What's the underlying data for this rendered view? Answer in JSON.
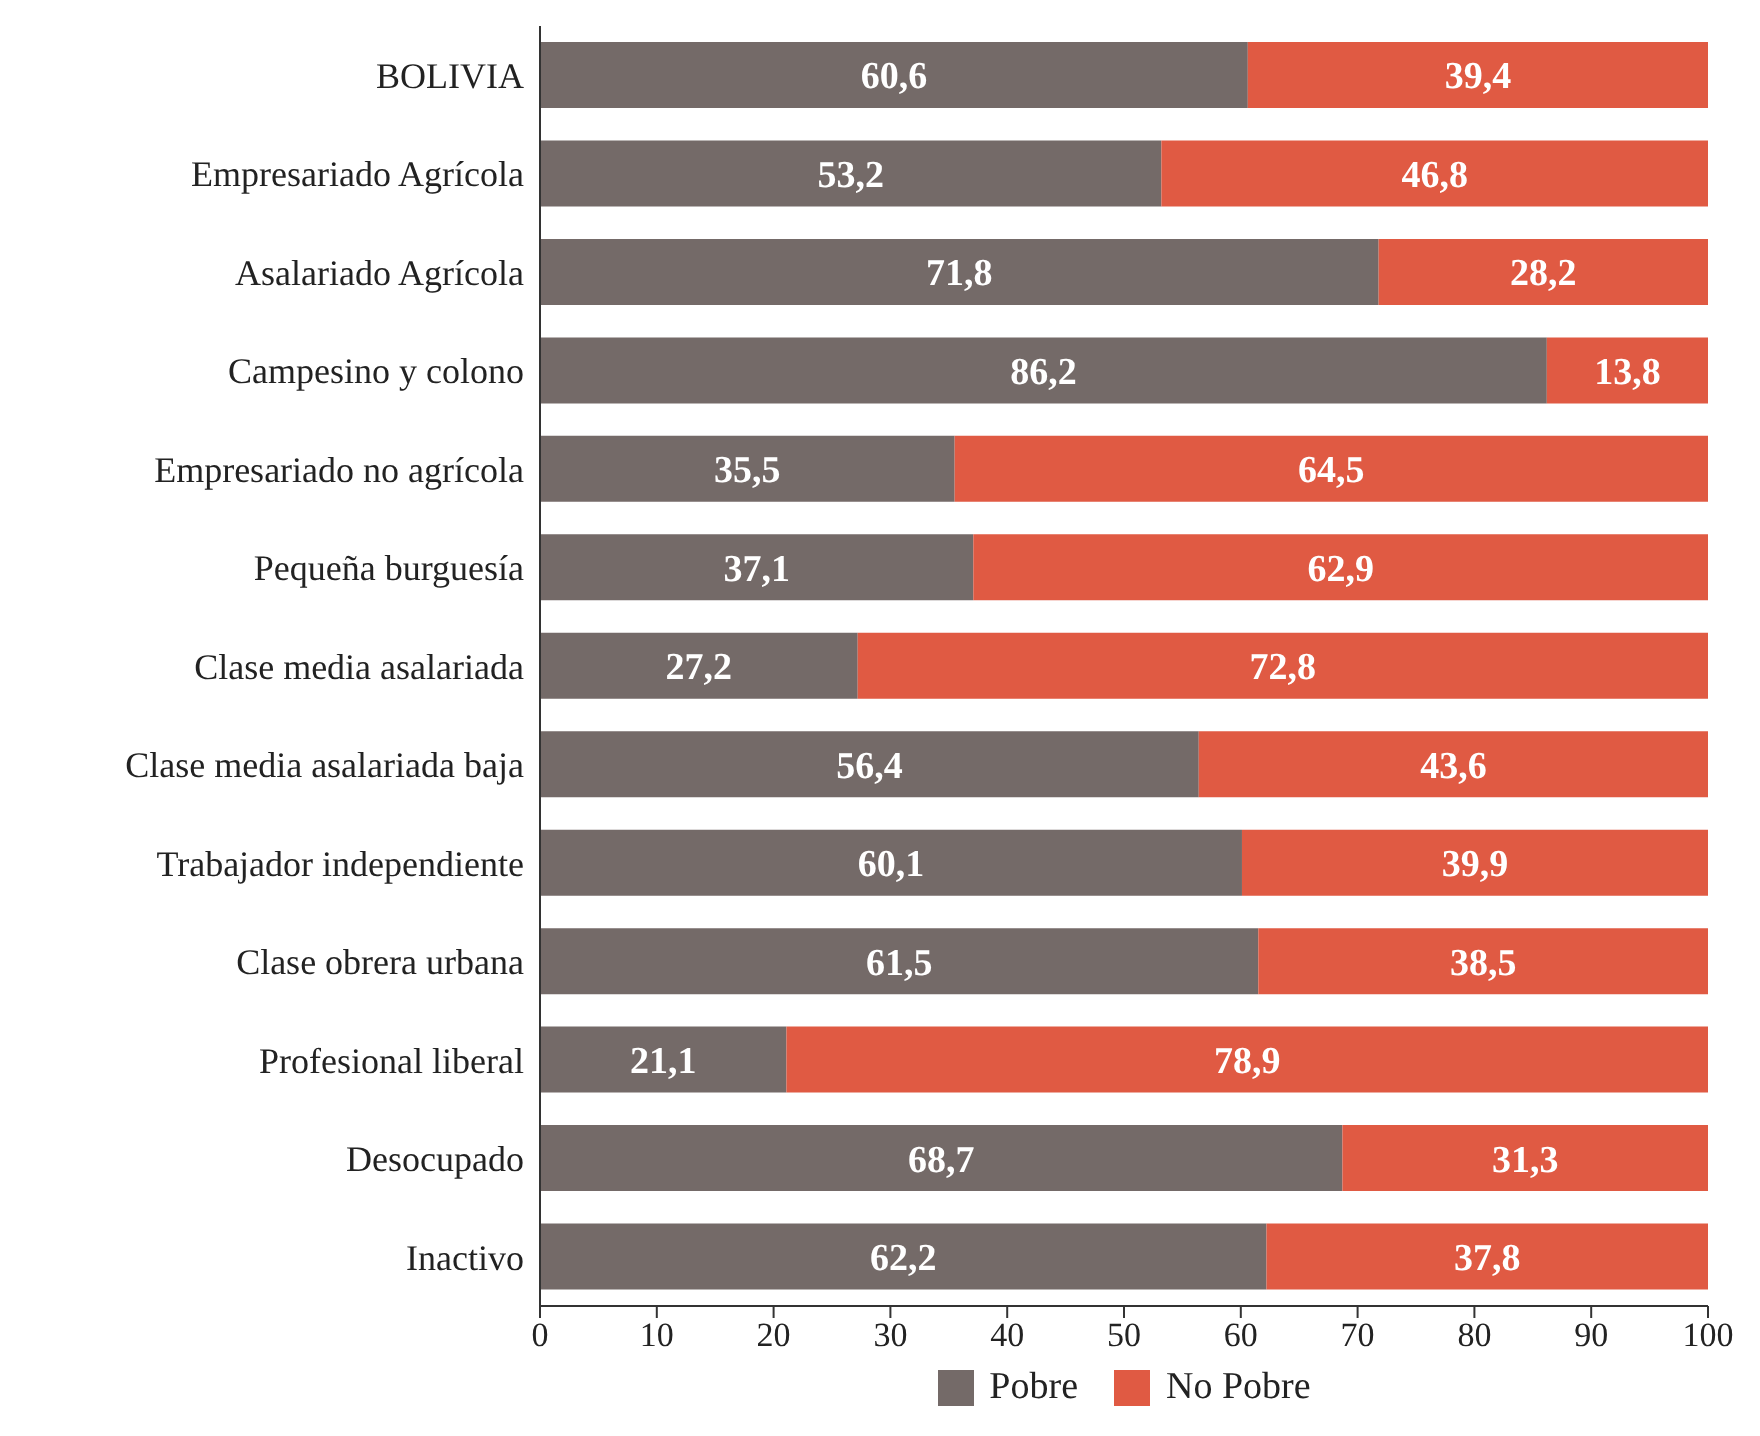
{
  "chart_data": {
    "type": "bar",
    "orientation": "horizontal",
    "stacked": true,
    "categories": [
      "BOLIVIA",
      "Empresariado Agrícola",
      "Asalariado  Agrícola",
      "Campesino y colono",
      "Empresariado no agrícola",
      "Pequeña burguesía",
      "Clase media asalariada",
      "Clase media asalariada baja",
      "Trabajador independiente",
      "Clase obrera urbana",
      "Profesional liberal",
      "Desocupado",
      "Inactivo"
    ],
    "series": [
      {
        "name": "Pobre",
        "color": "#746a68",
        "values": [
          60.6,
          53.2,
          71.8,
          86.2,
          35.5,
          37.1,
          27.2,
          56.4,
          60.1,
          61.5,
          21.1,
          68.7,
          62.2
        ],
        "value_labels": [
          "60,6",
          "53,2",
          "71,8",
          "86,2",
          "35,5",
          "37,1",
          "27,2",
          "56,4",
          "60,1",
          "61,5",
          "21,1",
          "68,7",
          "62,2"
        ]
      },
      {
        "name": "No Pobre",
        "color": "#e05a43",
        "values": [
          39.4,
          46.8,
          28.2,
          13.8,
          64.5,
          62.9,
          72.8,
          43.6,
          39.9,
          38.5,
          78.9,
          31.3,
          37.8
        ],
        "value_labels": [
          "39,4",
          "46,8",
          "28,2",
          "13,8",
          "64,5",
          "62,9",
          "72,8",
          "43,6",
          "39,9",
          "38,5",
          "78,9",
          "31,3",
          "37,8"
        ]
      }
    ],
    "xlim": [
      0,
      100
    ],
    "xticks": [
      0,
      10,
      20,
      30,
      40,
      50,
      60,
      70,
      80,
      90,
      100
    ],
    "grid": false,
    "legend": "bottom"
  }
}
